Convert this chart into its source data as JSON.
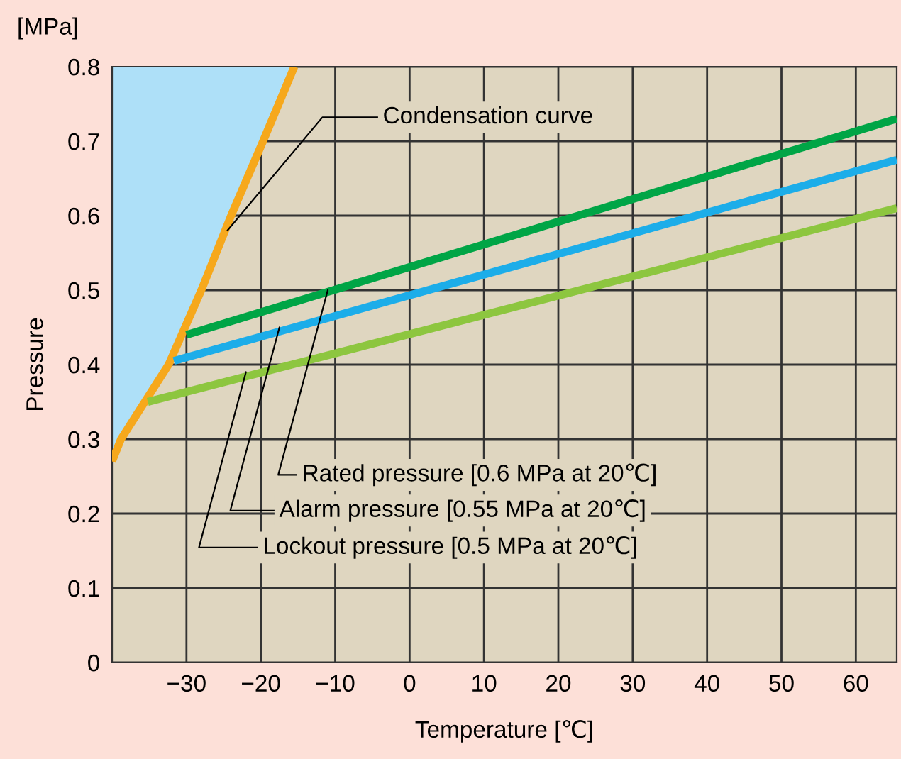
{
  "chart_data": {
    "type": "line",
    "xlabel": "Temperature [℃]",
    "ylabel": "Pressure",
    "xlim": [
      -40,
      65.5
    ],
    "ylim": [
      0,
      0.8
    ],
    "xticks": [
      {
        "value": -30,
        "label": "−30"
      },
      {
        "value": -20,
        "label": "−20"
      },
      {
        "value": -10,
        "label": "−10"
      },
      0,
      10,
      20,
      30,
      40,
      50,
      60
    ],
    "yticks": [
      0,
      0.1,
      0.2,
      0.3,
      0.4,
      0.5,
      0.6,
      0.7,
      0.8
    ],
    "grid": true,
    "line_style": "solid",
    "series": [
      {
        "color": "#f6a81c",
        "x": [
          -40,
          -38.8,
          -32.4,
          -28,
          -24,
          -19.7,
          -15.5
        ],
        "values": [
          0.27,
          0.3,
          0.4,
          0.5,
          0.6,
          0.7,
          0.8
        ]
      },
      {
        "color": "#00a546",
        "x": [
          -30,
          65.5
        ],
        "values": [
          0.44,
          0.73
        ]
      },
      {
        "color": "#1cade9",
        "x": [
          -31.7,
          65.5
        ],
        "values": [
          0.405,
          0.675
        ]
      },
      {
        "color": "#8dc63f",
        "x": [
          -35.2,
          65.5
        ],
        "values": [
          0.35,
          0.61
        ]
      }
    ],
    "annotations": [
      {
        "text": "Condensation curve",
        "x": -24.5,
        "y": 0.58
      },
      {
        "text": "Rated pressure [0.6 MPa at 20℃]",
        "x": -11,
        "y": 0.5
      },
      {
        "text": "Alarm pressure [0.55 MPa at 20℃]",
        "x": -17.5,
        "y": 0.45
      },
      {
        "text": "Lockout pressure [0.5 MPa at 20℃]",
        "x": -22,
        "y": 0.39
      },
      "[MPa]"
    ]
  }
}
